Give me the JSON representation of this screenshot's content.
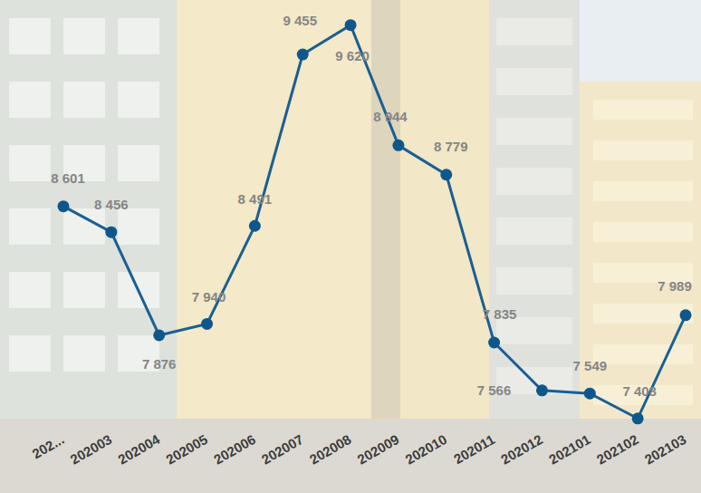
{
  "chart_data": {
    "type": "line",
    "categories": [
      "202...",
      "202003",
      "202004",
      "202005",
      "202006",
      "202007",
      "202008",
      "202009",
      "202010",
      "202011",
      "202012",
      "202101",
      "202102",
      "202103"
    ],
    "values": [
      8601,
      8456,
      7876,
      7940,
      8491,
      9455,
      9620,
      8944,
      8779,
      7835,
      7566,
      7549,
      7408,
      7989
    ],
    "value_labels": [
      "8 601",
      "8 456",
      "7 876",
      "7 940",
      "8 491",
      "9 455",
      "9 620",
      "8 944",
      "8 779",
      "7 835",
      "7 566",
      "7 549",
      "7 408",
      "7 989"
    ],
    "color": "#1b5f92",
    "marker": "circle",
    "line_style": "solid",
    "ylim": [
      7300,
      9700
    ],
    "data_labels": true,
    "tick_labels": "x",
    "grid": false
  }
}
